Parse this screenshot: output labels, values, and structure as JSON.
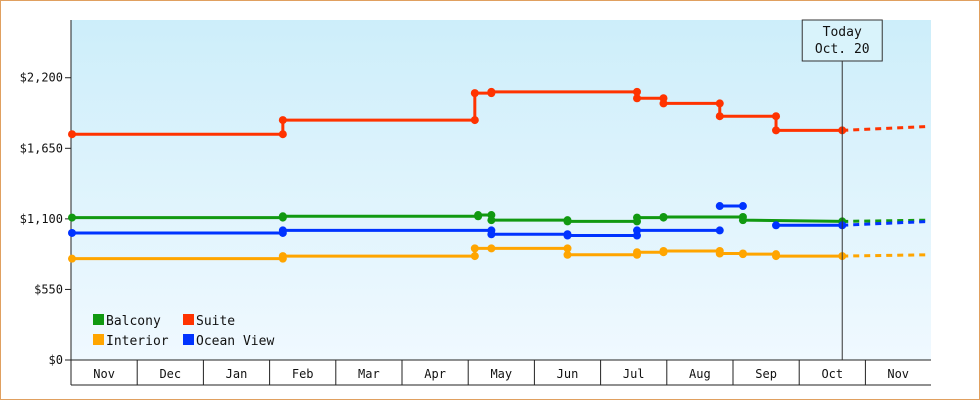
{
  "chart_data": {
    "type": "line",
    "title": "",
    "xlabel": "",
    "ylabel": "",
    "ylim": [
      0,
      2650
    ],
    "yticks": [
      {
        "value": 0,
        "label": "$0"
      },
      {
        "value": 550,
        "label": "$550"
      },
      {
        "value": 1100,
        "label": "$1,100"
      },
      {
        "value": 1650,
        "label": "$1,650"
      },
      {
        "value": 2200,
        "label": "$2,200"
      }
    ],
    "x_start": "Nov 1",
    "x_end": "Dec 1 (next year)",
    "months": [
      "Nov",
      "Dec",
      "Jan",
      "Feb",
      "Mar",
      "Apr",
      "May",
      "Jun",
      "Jul",
      "Aug",
      "Sep",
      "Oct",
      "Nov"
    ],
    "grid": false,
    "today_marker": {
      "line1": "Today",
      "line2": "Oct. 20",
      "month_index": 11.65
    },
    "legend": {
      "position": "bottom-left",
      "items": [
        {
          "name": "Balcony",
          "color": "#119911"
        },
        {
          "name": "Suite",
          "color": "#ff3300"
        },
        {
          "name": "Interior",
          "color": "#ffa500"
        },
        {
          "name": "Ocean View",
          "color": "#0033ff"
        }
      ]
    },
    "series": [
      {
        "name": "Suite",
        "color": "#ff3300",
        "steps": [
          {
            "m": 0.0,
            "from": 1760,
            "to": 1760
          },
          {
            "m": 3.2,
            "from": 1760,
            "to": 1870
          },
          {
            "m": 6.1,
            "from": 1870,
            "to": 2080
          },
          {
            "m": 6.35,
            "from": 2080,
            "to": 2090
          },
          {
            "m": 8.55,
            "from": 2090,
            "to": 2040
          },
          {
            "m": 8.95,
            "from": 2040,
            "to": 2000
          },
          {
            "m": 9.8,
            "from": 2000,
            "to": 1900
          },
          {
            "m": 10.65,
            "from": 1900,
            "to": 1790
          },
          {
            "m": 11.65,
            "from": 1790,
            "to": 1790
          }
        ],
        "projection": [
          {
            "m": 11.65,
            "v": 1790
          },
          {
            "m": 12.95,
            "v": 1820
          }
        ]
      },
      {
        "name": "Balcony",
        "color": "#119911",
        "steps": [
          {
            "m": 0.0,
            "from": 1110,
            "to": 1110
          },
          {
            "m": 3.2,
            "from": 1110,
            "to": 1120
          },
          {
            "m": 6.15,
            "from": 1120,
            "to": 1130
          },
          {
            "m": 6.35,
            "from": 1130,
            "to": 1090
          },
          {
            "m": 7.5,
            "from": 1090,
            "to": 1080
          },
          {
            "m": 8.55,
            "from": 1080,
            "to": 1110
          },
          {
            "m": 8.95,
            "from": 1110,
            "to": 1115
          },
          {
            "m": 10.15,
            "from": 1115,
            "to": 1090
          },
          {
            "m": 11.65,
            "from": 1080,
            "to": 1080
          }
        ],
        "projection": [
          {
            "m": 11.65,
            "v": 1080
          },
          {
            "m": 12.95,
            "v": 1090
          }
        ]
      },
      {
        "name": "Ocean View",
        "color": "#0033ff",
        "steps": [
          {
            "m": 0.0,
            "from": 990,
            "to": 990
          },
          {
            "m": 3.2,
            "from": 990,
            "to": 1010
          },
          {
            "m": 6.35,
            "from": 1010,
            "to": 980
          },
          {
            "m": 7.5,
            "from": 980,
            "to": 970
          },
          {
            "m": 8.55,
            "from": 970,
            "to": 1010
          },
          {
            "m": 9.8,
            "from": 1010,
            "to": 1010
          }
        ],
        "island": [
          {
            "m": 9.8,
            "v": 1200
          },
          {
            "m": 10.15,
            "v": 1200
          }
        ],
        "tail": [
          {
            "m": 10.65,
            "v": 1050
          },
          {
            "m": 11.65,
            "v": 1050
          }
        ],
        "projection": [
          {
            "m": 11.65,
            "v": 1050
          },
          {
            "m": 12.95,
            "v": 1080
          }
        ]
      },
      {
        "name": "Interior",
        "color": "#ffa500",
        "steps": [
          {
            "m": 0.0,
            "from": 790,
            "to": 790
          },
          {
            "m": 3.2,
            "from": 790,
            "to": 810
          },
          {
            "m": 6.1,
            "from": 810,
            "to": 870
          },
          {
            "m": 6.35,
            "from": 870,
            "to": 870
          },
          {
            "m": 7.5,
            "from": 870,
            "to": 820
          },
          {
            "m": 8.55,
            "from": 820,
            "to": 840
          },
          {
            "m": 8.95,
            "from": 840,
            "to": 850
          },
          {
            "m": 9.8,
            "from": 850,
            "to": 830
          },
          {
            "m": 10.15,
            "from": 830,
            "to": 825
          },
          {
            "m": 10.65,
            "from": 825,
            "to": 810
          },
          {
            "m": 11.65,
            "from": 810,
            "to": 810
          }
        ],
        "projection": [
          {
            "m": 11.65,
            "v": 810
          },
          {
            "m": 12.95,
            "v": 820
          }
        ]
      }
    ]
  }
}
